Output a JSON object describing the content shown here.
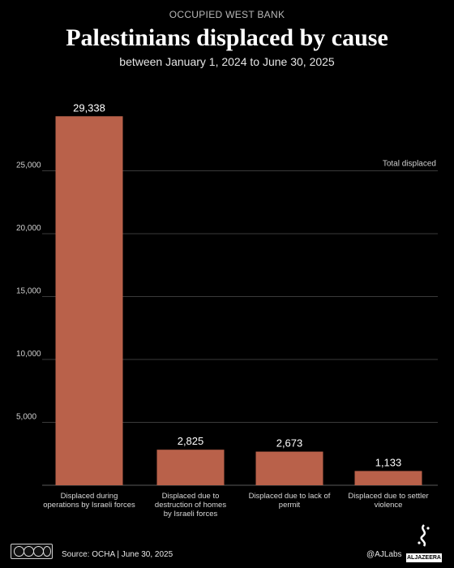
{
  "header": {
    "kicker": "OCCUPIED WEST BANK",
    "title": "Palestinians displaced by cause",
    "subtitle": "between January 1, 2024 to June 30, 2025"
  },
  "chart_data": {
    "type": "bar",
    "legend_label": "Total displaced",
    "categories": [
      [
        "Displaced during",
        "operations by Israeli forces"
      ],
      [
        "Displaced due to",
        "destruction of homes",
        "by Israeli forces"
      ],
      [
        "Displaced due to lack of",
        "permit"
      ],
      [
        "Displaced due to settler",
        "violence"
      ]
    ],
    "values": [
      29338,
      2825,
      2673,
      1133
    ],
    "value_labels": [
      "29,338",
      "2,825",
      "2,673",
      "1,133"
    ],
    "yticks": [
      5000,
      10000,
      15000,
      20000,
      25000
    ],
    "ytick_labels": [
      "5,000",
      "10,000",
      "15,000",
      "20,000",
      "25,000"
    ],
    "ylim": [
      0,
      30000
    ],
    "grid": true,
    "bar_color": "#b9614a"
  },
  "footer": {
    "source": "Source:  OCHA | June 30, 2025",
    "handle": "@AJLabs",
    "logo_text": "ALJAZEERA"
  }
}
